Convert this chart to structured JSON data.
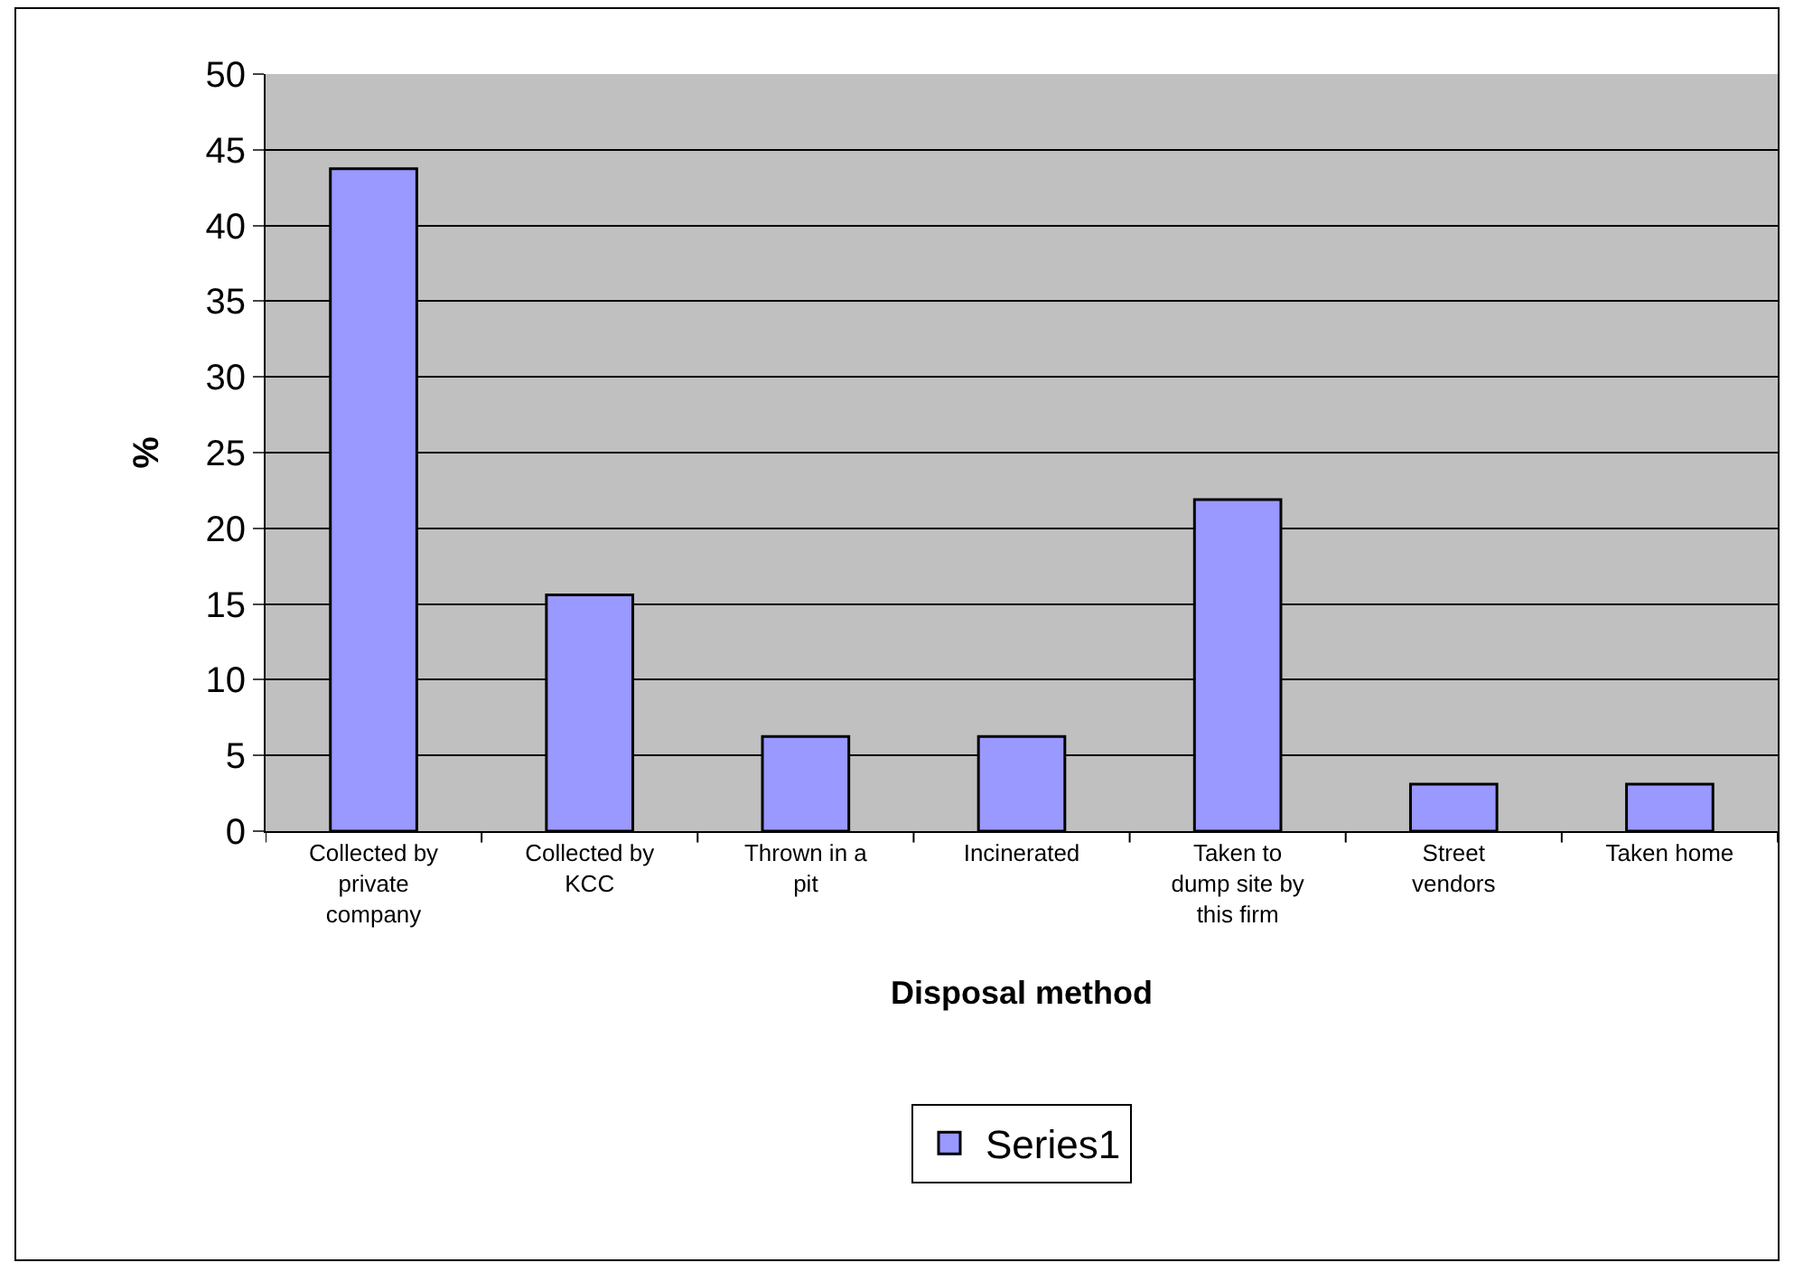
{
  "chart_data": {
    "type": "bar",
    "categories": [
      "Collected by private company",
      "Collected by KCC",
      "Thrown in a pit",
      "Incinerated",
      "Taken to dump site by this firm",
      "Street vendors",
      "Taken home"
    ],
    "series": [
      {
        "name": "Series1",
        "color": "#9999ff",
        "values": [
          43.75,
          15.6,
          6.25,
          6.25,
          21.9,
          3.1,
          3.1
        ]
      }
    ],
    "xlabel": "Disposal method",
    "ylabel": "%",
    "ylim": [
      0,
      50
    ],
    "yticks": [
      0,
      5,
      10,
      15,
      20,
      25,
      30,
      35,
      40,
      45,
      50
    ],
    "grid": "y",
    "legend": "bottom"
  }
}
